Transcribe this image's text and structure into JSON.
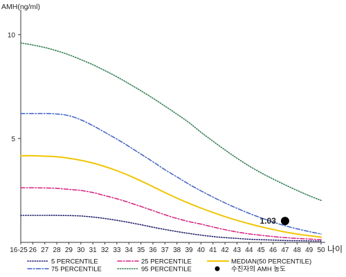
{
  "chart_data": {
    "type": "line",
    "ylabel": "AMH(ng/ml)",
    "xlabel": "나이",
    "categories": [
      "16-25",
      "26",
      "27",
      "28",
      "29",
      "30",
      "31",
      "32",
      "33",
      "34",
      "35",
      "36",
      "37",
      "38",
      "39",
      "40",
      "41",
      "42",
      "43",
      "44",
      "45",
      "46",
      "47",
      "48",
      "49",
      "50"
    ],
    "yticks": [
      5,
      10
    ],
    "ylim": [
      0,
      11.2
    ],
    "grid": false,
    "legend": "bottom",
    "series": [
      {
        "name": "5 PERCENTILE",
        "color": "#1c1c6b",
        "line_style": "dotted",
        "values": [
          1.3,
          1.3,
          1.3,
          1.3,
          1.29,
          1.27,
          1.22,
          1.15,
          1.06,
          0.96,
          0.85,
          0.73,
          0.62,
          0.52,
          0.43,
          0.35,
          0.28,
          0.23,
          0.19,
          0.15,
          0.13,
          0.11,
          0.09,
          0.08,
          0.07,
          0.06
        ]
      },
      {
        "name": "25 PERCENTILE",
        "color": "#e0197d",
        "line_style": "dashdot",
        "values": [
          2.63,
          2.63,
          2.62,
          2.6,
          2.55,
          2.5,
          2.4,
          2.25,
          2.1,
          1.92,
          1.73,
          1.53,
          1.33,
          1.15,
          1.0,
          0.88,
          0.74,
          0.61,
          0.5,
          0.41,
          0.34,
          0.28,
          0.23,
          0.19,
          0.16,
          0.13
        ]
      },
      {
        "name": "MEDIAN(50 PERCENTILE)",
        "color": "#f2c500",
        "line_style": "solid",
        "values": [
          4.17,
          4.17,
          4.15,
          4.12,
          4.05,
          3.95,
          3.82,
          3.65,
          3.45,
          3.22,
          2.96,
          2.68,
          2.4,
          2.13,
          1.88,
          1.65,
          1.44,
          1.24,
          1.06,
          0.9,
          0.75,
          0.62,
          0.5,
          0.4,
          0.32,
          0.25
        ]
      },
      {
        "name": "75 PERCENTILE",
        "color": "#3a5fcd",
        "line_style": "dashdot",
        "values": [
          6.2,
          6.2,
          6.2,
          6.18,
          6.1,
          5.9,
          5.62,
          5.3,
          4.97,
          4.62,
          4.25,
          3.88,
          3.5,
          3.15,
          2.8,
          2.48,
          2.18,
          1.9,
          1.64,
          1.4,
          1.18,
          0.98,
          0.8,
          0.65,
          0.52,
          0.4
        ]
      },
      {
        "name": "95 PERCENTILE",
        "color": "#2f7f4f",
        "line_style": "dotted",
        "values": [
          9.6,
          9.5,
          9.38,
          9.22,
          9.03,
          8.8,
          8.55,
          8.27,
          7.97,
          7.64,
          7.3,
          6.94,
          6.56,
          6.17,
          5.77,
          5.3,
          4.87,
          4.45,
          4.05,
          3.68,
          3.35,
          3.05,
          2.77,
          2.5,
          2.25,
          2.02
        ]
      }
    ],
    "point": {
      "name": "수진자의 AMH 농도",
      "x": "47",
      "y": 1.03,
      "color": "#000000"
    }
  }
}
